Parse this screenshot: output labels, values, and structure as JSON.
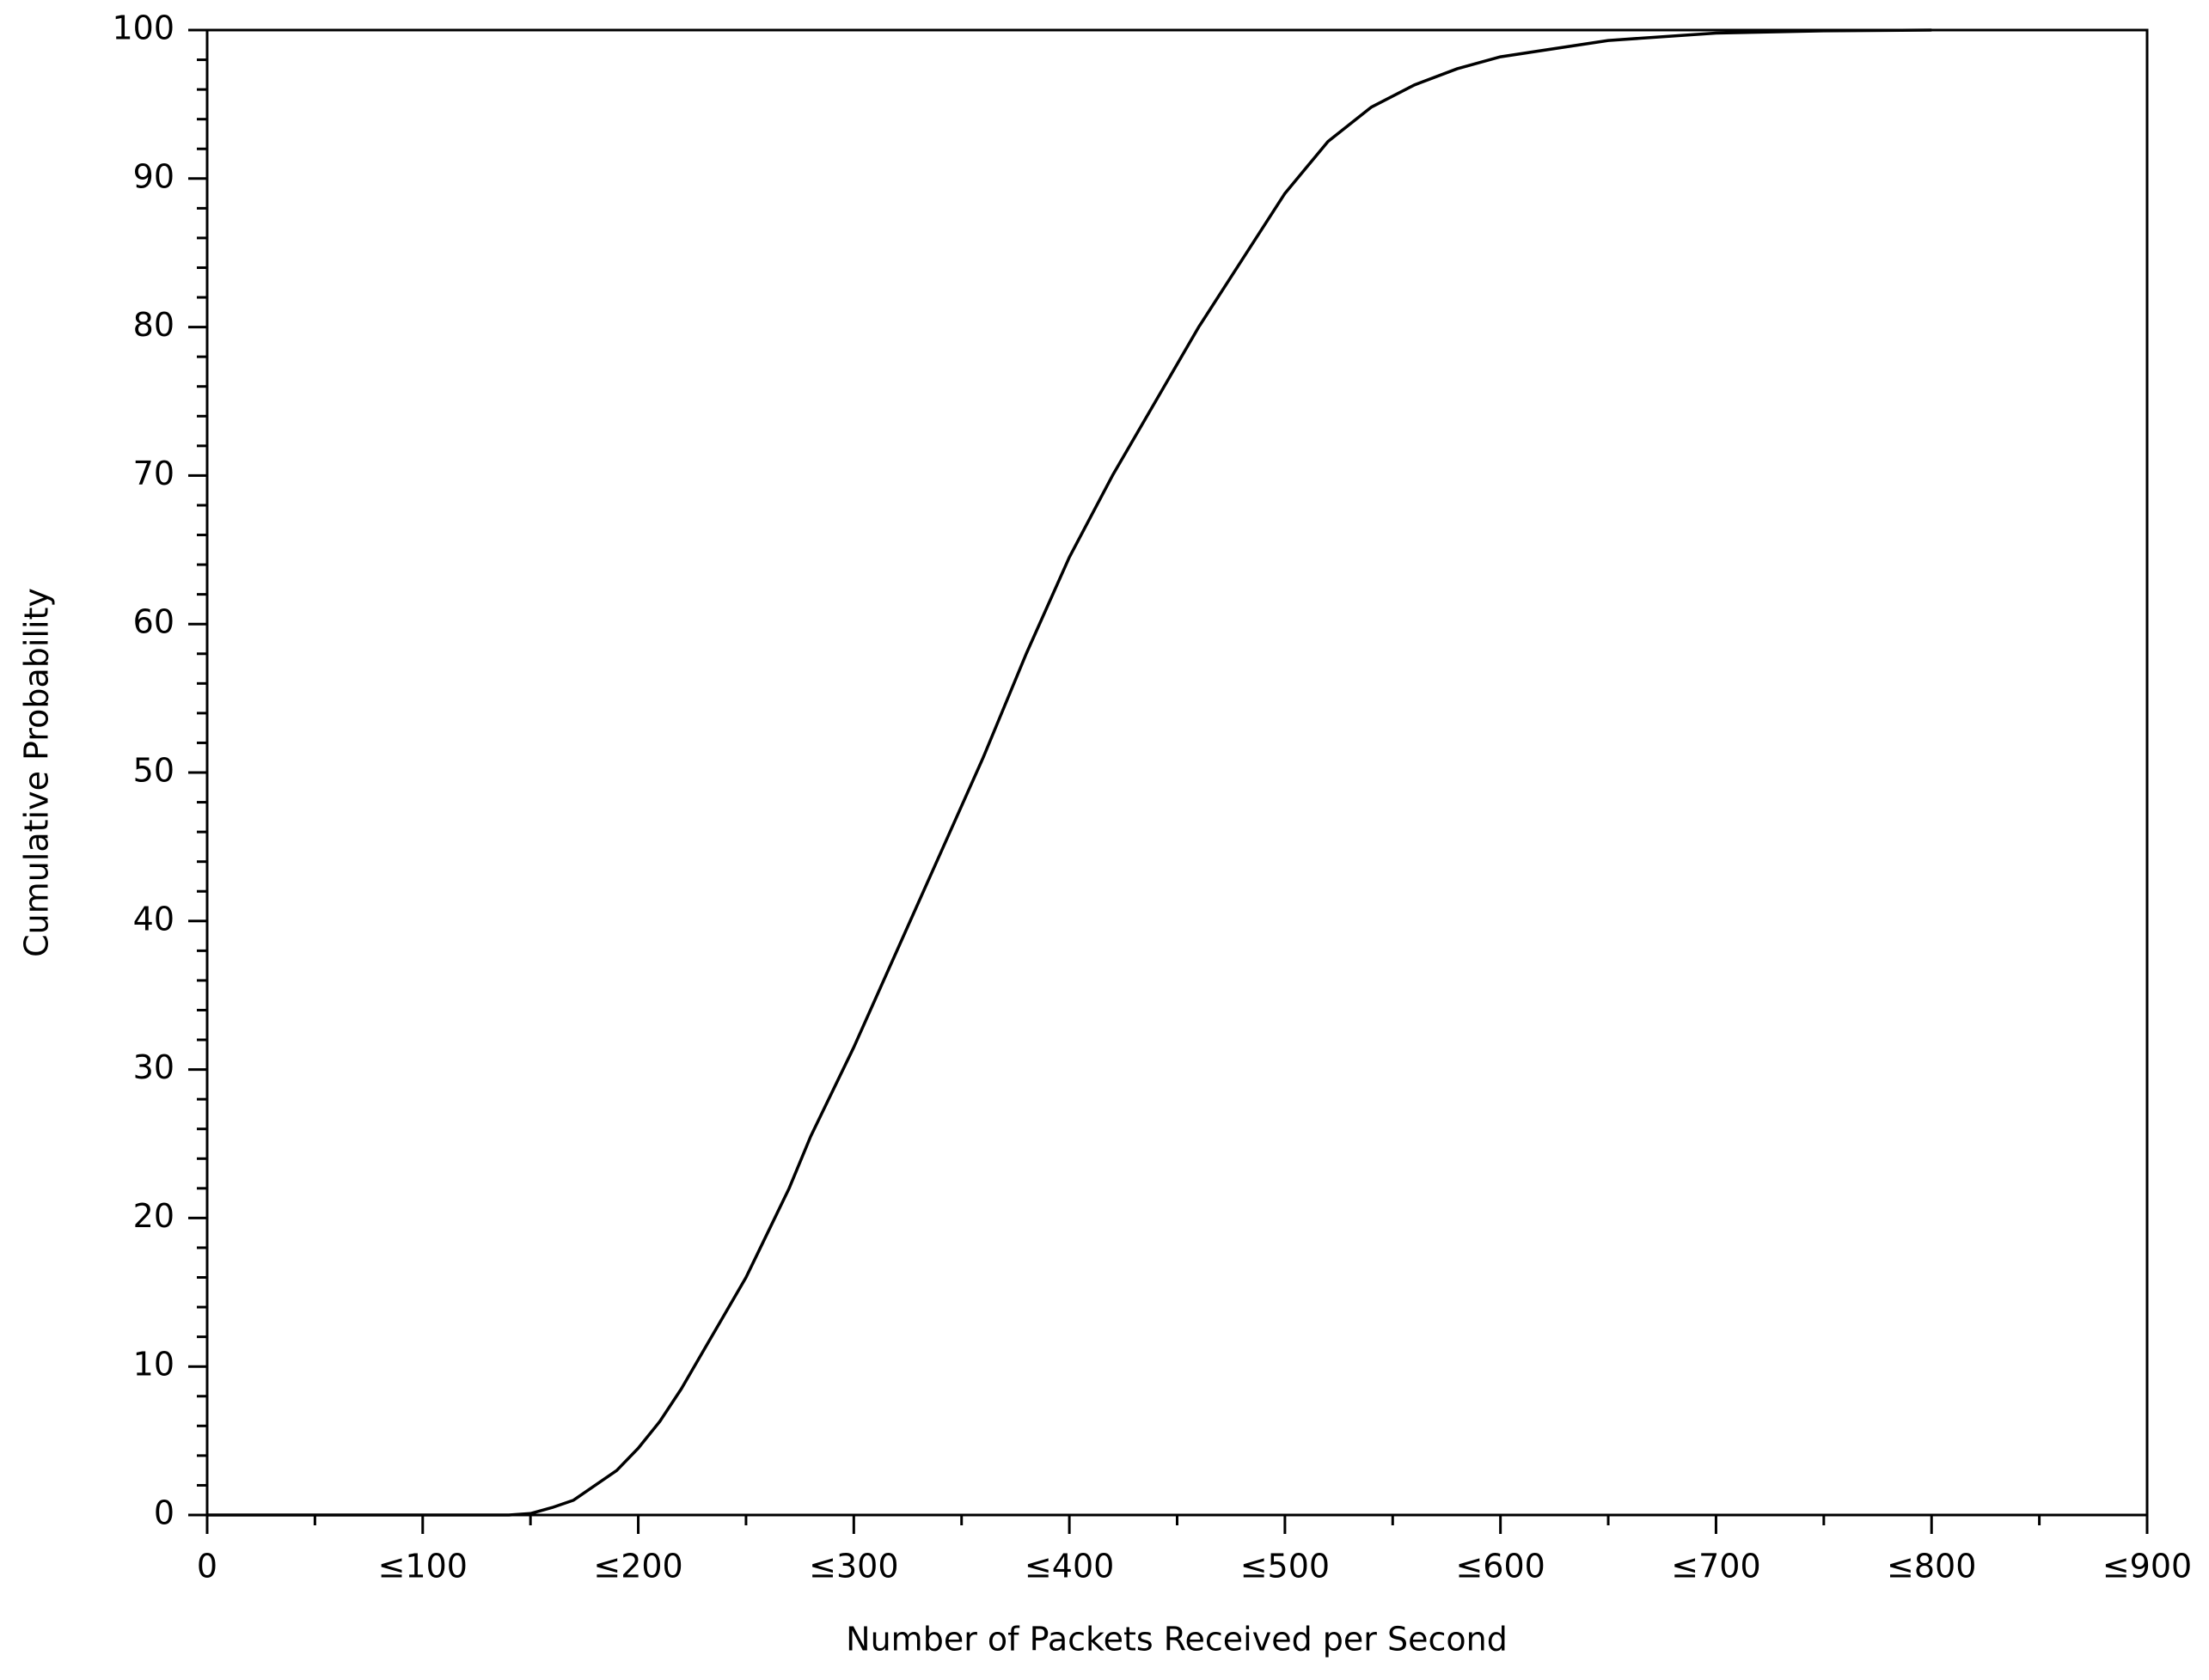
{
  "chart_data": {
    "type": "line",
    "x_label": "Number of Packets Received per Second",
    "y_label": "Cumulative Probability",
    "xlim": [
      0,
      900
    ],
    "ylim": [
      0,
      100
    ],
    "xticks": [
      0,
      {
        "value": 100,
        "label": "≤100"
      },
      {
        "value": 200,
        "label": "≤200"
      },
      {
        "value": 300,
        "label": "≤300"
      },
      {
        "value": 400,
        "label": "≤400"
      },
      {
        "value": 500,
        "label": "≤500"
      },
      {
        "value": 600,
        "label": "≤600"
      },
      {
        "value": 700,
        "label": "≤700"
      },
      {
        "value": 800,
        "label": "≤800"
      },
      {
        "value": 900,
        "label": "≤900"
      }
    ],
    "yticks": [
      0,
      10,
      20,
      30,
      40,
      50,
      60,
      70,
      80,
      90,
      100
    ],
    "x_minor_ticks": [
      50,
      150,
      250,
      350,
      450,
      550,
      650,
      750,
      850
    ],
    "y_minor_ticks": [
      2,
      4,
      6,
      8,
      12,
      14,
      16,
      18,
      22,
      24,
      26,
      28,
      32,
      34,
      36,
      38,
      42,
      44,
      46,
      48,
      52,
      54,
      56,
      58,
      62,
      64,
      66,
      68,
      72,
      74,
      76,
      78,
      82,
      84,
      86,
      88,
      92,
      94,
      96,
      98
    ],
    "series": [
      {
        "color": "#000000",
        "x": [
          0,
          140,
          150,
          160,
          170,
          180,
          190,
          200,
          210,
          220,
          230,
          240,
          250,
          260,
          270,
          280,
          290,
          300,
          320,
          340,
          360,
          380,
          400,
          420,
          440,
          460,
          480,
          500,
          520,
          540,
          560,
          580,
          600,
          650,
          700,
          750,
          800
        ],
        "values": [
          0,
          0,
          0.1,
          0.5,
          1,
          2,
          3,
          4.5,
          6.3,
          8.5,
          11,
          13.5,
          16,
          19,
          22,
          25.5,
          28.5,
          31.5,
          38,
          44.5,
          51,
          58,
          64.5,
          70,
          75,
          80,
          84.5,
          89,
          92.5,
          94.8,
          96.3,
          97.4,
          98.2,
          99.3,
          99.8,
          99.95,
          100
        ]
      }
    ]
  }
}
